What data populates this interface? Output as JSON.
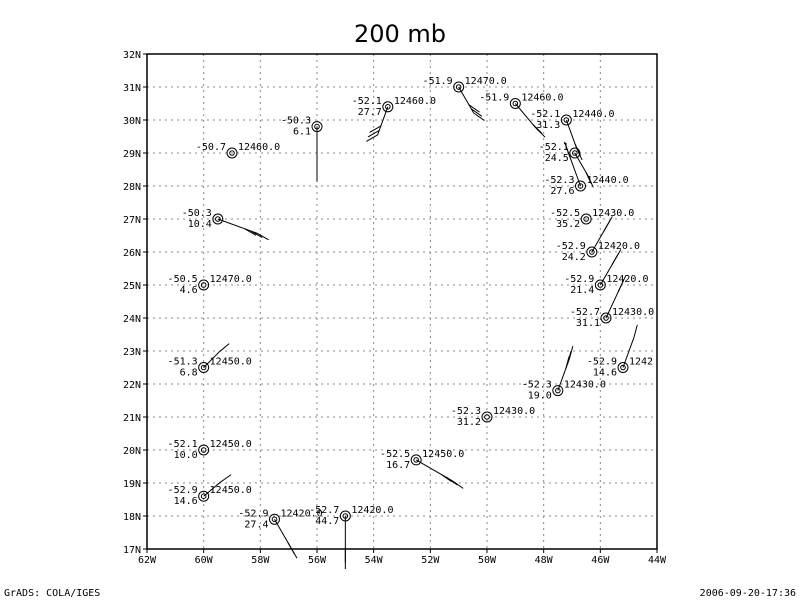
{
  "title": "200 mb",
  "footer": {
    "left": "GrADS: COLA/IGES",
    "right": "2006-09-20-17:36"
  },
  "map": {
    "lon_range": [
      -62,
      -44
    ],
    "lat_range": [
      17,
      32
    ],
    "lon_ticks": [
      "62W",
      "60W",
      "58W",
      "56W",
      "54W",
      "52W",
      "50W",
      "48W",
      "46W",
      "44W"
    ],
    "lat_ticks": [
      "17N",
      "18N",
      "19N",
      "20N",
      "21N",
      "22N",
      "23N",
      "24N",
      "25N",
      "26N",
      "27N",
      "28N",
      "29N",
      "30N",
      "31N",
      "32N"
    ]
  },
  "stations": [
    {
      "lon": -51.0,
      "lat": 31.0,
      "temp": "-51.9",
      "height": "12470.0",
      "second": "",
      "barb": {
        "dir": 150,
        "ang": 125,
        "len": 30,
        "barbs": 3
      }
    },
    {
      "lon": -49.0,
      "lat": 30.5,
      "temp": "-51.9",
      "height": "12460.0",
      "second": "",
      "barb": {
        "dir": 140,
        "ang": 135,
        "len": 32,
        "barbs": 2
      }
    },
    {
      "lon": -53.5,
      "lat": 30.4,
      "temp": "-52.1",
      "height": "12460.0",
      "second": "27.7",
      "barb": {
        "dir": 200,
        "ang": 240,
        "len": 30,
        "barbs": 3
      }
    },
    {
      "lon": -56.0,
      "lat": 29.8,
      "temp": "-50.3",
      "height": "",
      "second": "6.1",
      "barb": {
        "dir": 180,
        "ang": 180,
        "len": 42,
        "barbs": 2
      }
    },
    {
      "lon": -59.0,
      "lat": 29.0,
      "temp": "-50.7",
      "height": "12460.0",
      "second": "",
      "barb": {
        "dir": 0,
        "ang": 0,
        "len": 0,
        "barbs": 0
      }
    },
    {
      "lon": -47.2,
      "lat": 30.0,
      "temp": "-52.1",
      "height": "12440.0",
      "second": "31.3",
      "barb": {
        "dir": 160,
        "ang": 155,
        "len": 30,
        "barbs": 2
      }
    },
    {
      "lon": -46.9,
      "lat": 29.0,
      "temp": "-52.1",
      "height": "",
      "second": "24.5",
      "barb": {
        "dir": 150,
        "ang": 155,
        "len": 26,
        "barbs": 2
      }
    },
    {
      "lon": -46.7,
      "lat": 28.0,
      "temp": "-52.3",
      "height": "12440.0",
      "second": "27.6",
      "barb": {
        "dir": 340,
        "ang": 340,
        "len": 34,
        "barbs": 2
      }
    },
    {
      "lon": -46.5,
      "lat": 27.0,
      "temp": "-52.5",
      "height": "12430.0",
      "second": "35.2",
      "barb": {
        "dir": 0,
        "ang": 0,
        "len": 0,
        "barbs": 0
      }
    },
    {
      "lon": -59.5,
      "lat": 27.0,
      "temp": "-50.3",
      "height": "",
      "second": "10.4",
      "barb": {
        "dir": 110,
        "ang": 120,
        "len": 42,
        "barbs": 3
      }
    },
    {
      "lon": -46.3,
      "lat": 26.0,
      "temp": "-52.9",
      "height": "12420.0",
      "second": "24.2",
      "barb": {
        "dir": 30,
        "ang": 30,
        "len": 28,
        "barbs": 2
      }
    },
    {
      "lon": -60.0,
      "lat": 25.0,
      "temp": "-50.5",
      "height": "12470.0",
      "second": "4.6",
      "barb": {
        "dir": 0,
        "ang": 0,
        "len": 0,
        "barbs": 0
      }
    },
    {
      "lon": -46.0,
      "lat": 25.0,
      "temp": "-52.9",
      "height": "12420.0",
      "second": "21.4",
      "barb": {
        "dir": 30,
        "ang": 30,
        "len": 28,
        "barbs": 2
      }
    },
    {
      "lon": -45.8,
      "lat": 24.0,
      "temp": "-52.7",
      "height": "12430.0",
      "second": "31.1",
      "barb": {
        "dir": 25,
        "ang": 25,
        "len": 34,
        "barbs": 2
      }
    },
    {
      "lon": -60.0,
      "lat": 22.5,
      "temp": "-51.3",
      "height": "12450.0",
      "second": "6.8",
      "barb": {
        "dir": 45,
        "ang": 50,
        "len": 22,
        "barbs": 1
      }
    },
    {
      "lon": -45.2,
      "lat": 22.5,
      "temp": "-52.9",
      "height": "1242",
      "second": "14.6",
      "barb": {
        "dir": 20,
        "ang": 15,
        "len": 32,
        "barbs": 1
      }
    },
    {
      "lon": -47.5,
      "lat": 21.8,
      "temp": "-52.3",
      "height": "12430.0",
      "second": "19.0",
      "barb": {
        "dir": 20,
        "ang": 15,
        "len": 34,
        "barbs": 3
      }
    },
    {
      "lon": -50.0,
      "lat": 21.0,
      "temp": "-52.3",
      "height": "12430.0",
      "second": "31.2",
      "barb": {
        "dir": 0,
        "ang": 0,
        "len": 0,
        "barbs": 0
      }
    },
    {
      "lon": -60.0,
      "lat": 20.0,
      "temp": "-52.1",
      "height": "12450.0",
      "second": "10.0",
      "barb": {
        "dir": 0,
        "ang": 0,
        "len": 0,
        "barbs": 0
      }
    },
    {
      "lon": -52.5,
      "lat": 19.7,
      "temp": "-52.5",
      "height": "12450.0",
      "second": "16.7",
      "barb": {
        "dir": 120,
        "ang": 125,
        "len": 42,
        "barbs": 3
      }
    },
    {
      "lon": -60.0,
      "lat": 18.6,
      "temp": "-52.9",
      "height": "12450.0",
      "second": "14.6",
      "barb": {
        "dir": 50,
        "ang": 55,
        "len": 22,
        "barbs": 1
      }
    },
    {
      "lon": -57.5,
      "lat": 17.9,
      "temp": "-52.9",
      "height": "12420.0",
      "second": "27.4",
      "barb": {
        "dir": 150,
        "ang": 150,
        "len": 32,
        "barbs": 2
      }
    },
    {
      "lon": -55.0,
      "lat": 18.0,
      "temp": "-52.7",
      "height": "12420.0",
      "second": "44.7",
      "barb": {
        "dir": 180,
        "ang": 180,
        "len": 40,
        "barbs": 2
      }
    }
  ]
}
